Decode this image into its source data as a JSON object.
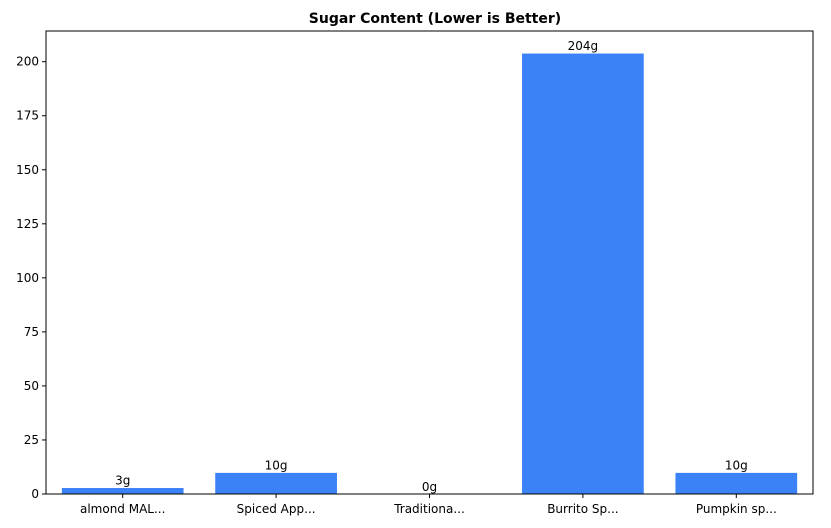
{
  "chart_data": {
    "type": "bar",
    "title": "Sugar Content (Lower is Better)",
    "xlabel": "",
    "ylabel": "",
    "categories": [
      "almond MAL...",
      "Spiced App...",
      "Traditiona...",
      "Burrito Sp...",
      "Pumpkin sp..."
    ],
    "values": [
      3,
      10,
      0,
      204,
      10
    ],
    "data_labels": [
      "3g",
      "10g",
      "0g",
      "204g",
      "10g"
    ],
    "ylim": [
      0,
      214.2
    ],
    "yticks": [
      0,
      25,
      50,
      75,
      100,
      125,
      150,
      175,
      200
    ],
    "grid": false,
    "legend": "none",
    "colors": {
      "bar": "#3b82f6",
      "bar_edge": "#ffffff"
    }
  }
}
